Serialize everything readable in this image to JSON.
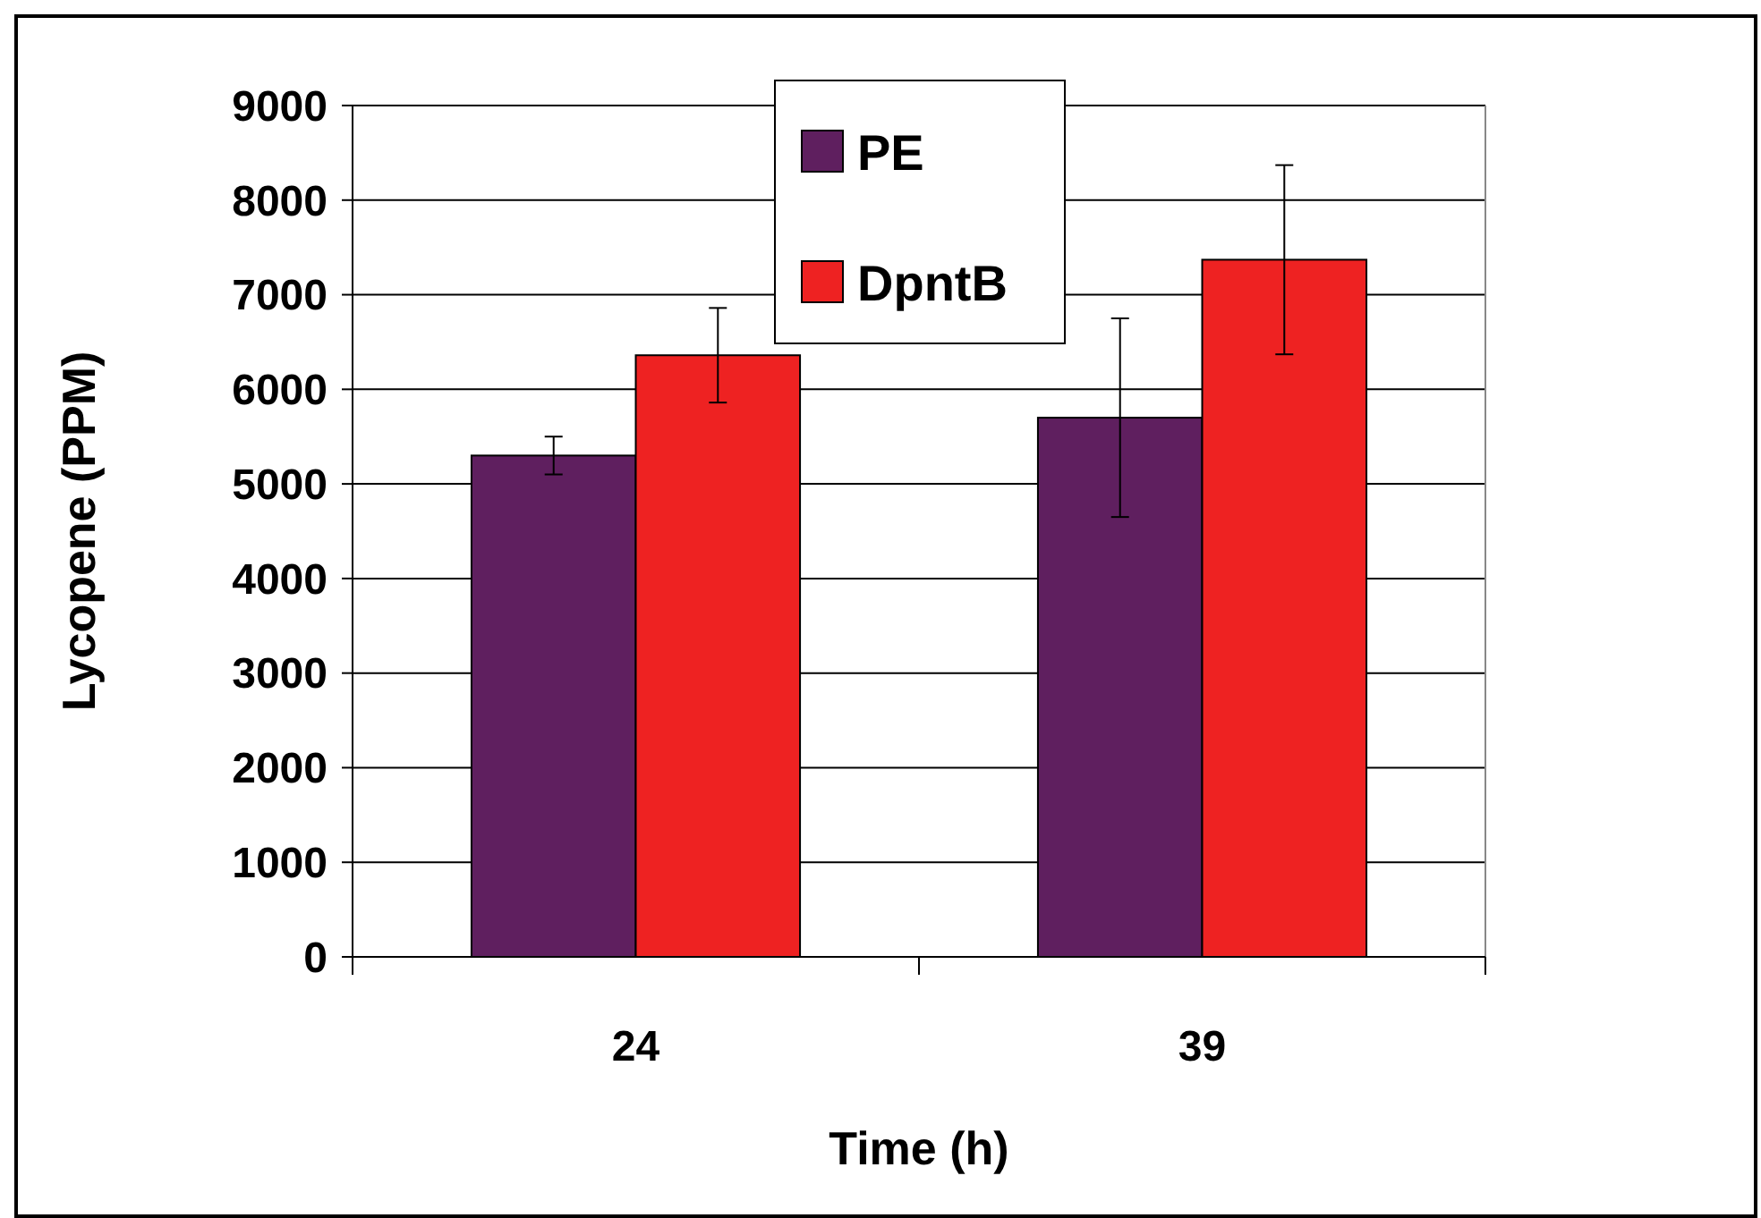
{
  "chart_data": {
    "type": "bar",
    "xlabel": "Time (h)",
    "ylabel": "Lycopene (PPM)",
    "categories": [
      "24",
      "39"
    ],
    "series": [
      {
        "name": "PE",
        "color": "#5f1f5f",
        "values": [
          5300,
          5700
        ],
        "errors": [
          200,
          1050
        ]
      },
      {
        "name": "DpntB",
        "color": "#ee2222",
        "values": [
          6360,
          7370
        ],
        "errors": [
          500,
          1000
        ]
      }
    ],
    "ylim": [
      0,
      9000
    ],
    "yticks": [
      0,
      1000,
      2000,
      3000,
      4000,
      5000,
      6000,
      7000,
      8000,
      9000
    ],
    "grid": "y",
    "legend": "top"
  }
}
